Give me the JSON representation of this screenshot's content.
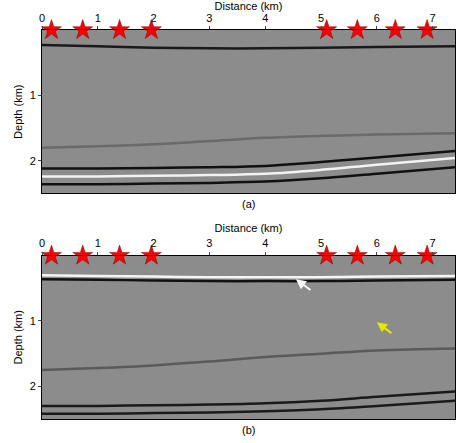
{
  "chart_data": [
    {
      "type": "line",
      "subtitle": "(a)",
      "x_label": "Distance (km)",
      "y_label": "Depth (km)",
      "xlim": [
        0,
        7.4
      ],
      "xticks": [
        0,
        1,
        2,
        3,
        4,
        5,
        6,
        7
      ],
      "ylim": [
        0,
        2.5
      ],
      "yticks": [
        1,
        2
      ],
      "grid": false,
      "series": [
        {
          "type": "scatter",
          "marker": "star",
          "color": "#ff0000",
          "x": [
            0.17,
            0.73,
            1.39,
            1.96,
            5.1,
            5.65,
            6.33,
            6.9
          ],
          "values": [
            0,
            0,
            0,
            0,
            0,
            0,
            0,
            0
          ]
        },
        {
          "type": "line",
          "line_style": "solid",
          "color": "#1a1a1a",
          "x": [
            0,
            1,
            2,
            3,
            4,
            5,
            6,
            7.4
          ],
          "values": [
            0.23,
            0.25,
            0.27,
            0.28,
            0.28,
            0.27,
            0.26,
            0.25
          ]
        },
        {
          "type": "line",
          "line_style": "solid",
          "color": "#6a6a6a",
          "x": [
            0,
            1,
            2,
            3,
            4,
            5,
            6,
            7.4
          ],
          "values": [
            1.8,
            1.78,
            1.75,
            1.7,
            1.65,
            1.62,
            1.6,
            1.58
          ]
        },
        {
          "type": "line",
          "line_style": "solid",
          "color": "#111111",
          "x": [
            0,
            1,
            2,
            3,
            4,
            5,
            6,
            7.4
          ],
          "values": [
            2.12,
            2.12,
            2.11,
            2.1,
            2.08,
            2.02,
            1.95,
            1.85
          ]
        },
        {
          "type": "line",
          "line_style": "solid",
          "color": "#f2f2f2",
          "x": [
            0,
            1,
            2,
            3,
            4,
            5,
            6,
            7.4
          ],
          "values": [
            2.24,
            2.24,
            2.23,
            2.22,
            2.2,
            2.14,
            2.06,
            1.96
          ]
        },
        {
          "type": "line",
          "line_style": "solid",
          "color": "#111111",
          "x": [
            0,
            1,
            2,
            3,
            4,
            5,
            6,
            7.4
          ],
          "values": [
            2.36,
            2.36,
            2.35,
            2.34,
            2.32,
            2.27,
            2.2,
            2.1
          ]
        }
      ]
    },
    {
      "type": "line",
      "subtitle": "(b)",
      "x_label": "Distance (km)",
      "y_label": "Depth (km)",
      "xlim": [
        0,
        7.4
      ],
      "xticks": [
        0,
        1,
        2,
        3,
        4,
        5,
        6,
        7
      ],
      "ylim": [
        0,
        2.5
      ],
      "yticks": [
        1,
        2
      ],
      "grid": false,
      "series": [
        {
          "type": "scatter",
          "marker": "star",
          "color": "#ff0000",
          "x": [
            0.17,
            0.73,
            1.39,
            1.96,
            5.1,
            5.65,
            6.33,
            6.9
          ],
          "values": [
            0,
            0,
            0,
            0,
            0,
            0,
            0,
            0
          ]
        },
        {
          "type": "line",
          "line_style": "solid",
          "color": "#f5f5f5",
          "x": [
            0,
            1,
            2,
            3,
            4,
            5,
            6,
            7.4
          ],
          "values": [
            0.3,
            0.31,
            0.32,
            0.33,
            0.33,
            0.33,
            0.32,
            0.31
          ]
        },
        {
          "type": "line",
          "line_style": "solid",
          "color": "#111111",
          "x": [
            0,
            1,
            2,
            3,
            4,
            5,
            6,
            7.4
          ],
          "values": [
            0.36,
            0.37,
            0.38,
            0.39,
            0.39,
            0.39,
            0.38,
            0.37
          ]
        },
        {
          "type": "line",
          "line_style": "solid",
          "color": "#5a5a5a",
          "x": [
            0,
            1,
            2,
            3,
            4,
            5,
            6,
            7.4
          ],
          "values": [
            1.75,
            1.72,
            1.68,
            1.62,
            1.55,
            1.5,
            1.45,
            1.42
          ]
        },
        {
          "type": "line",
          "line_style": "solid",
          "color": "#1a1a1a",
          "x": [
            0,
            1,
            2,
            3,
            4,
            5,
            6,
            7.4
          ],
          "values": [
            2.3,
            2.3,
            2.29,
            2.28,
            2.26,
            2.22,
            2.16,
            2.08
          ]
        },
        {
          "type": "line",
          "line_style": "solid",
          "color": "#1a1a1a",
          "x": [
            0,
            1,
            2,
            3,
            4,
            5,
            6,
            7.4
          ],
          "values": [
            2.42,
            2.42,
            2.41,
            2.4,
            2.38,
            2.35,
            2.3,
            2.22
          ]
        }
      ]
    }
  ]
}
